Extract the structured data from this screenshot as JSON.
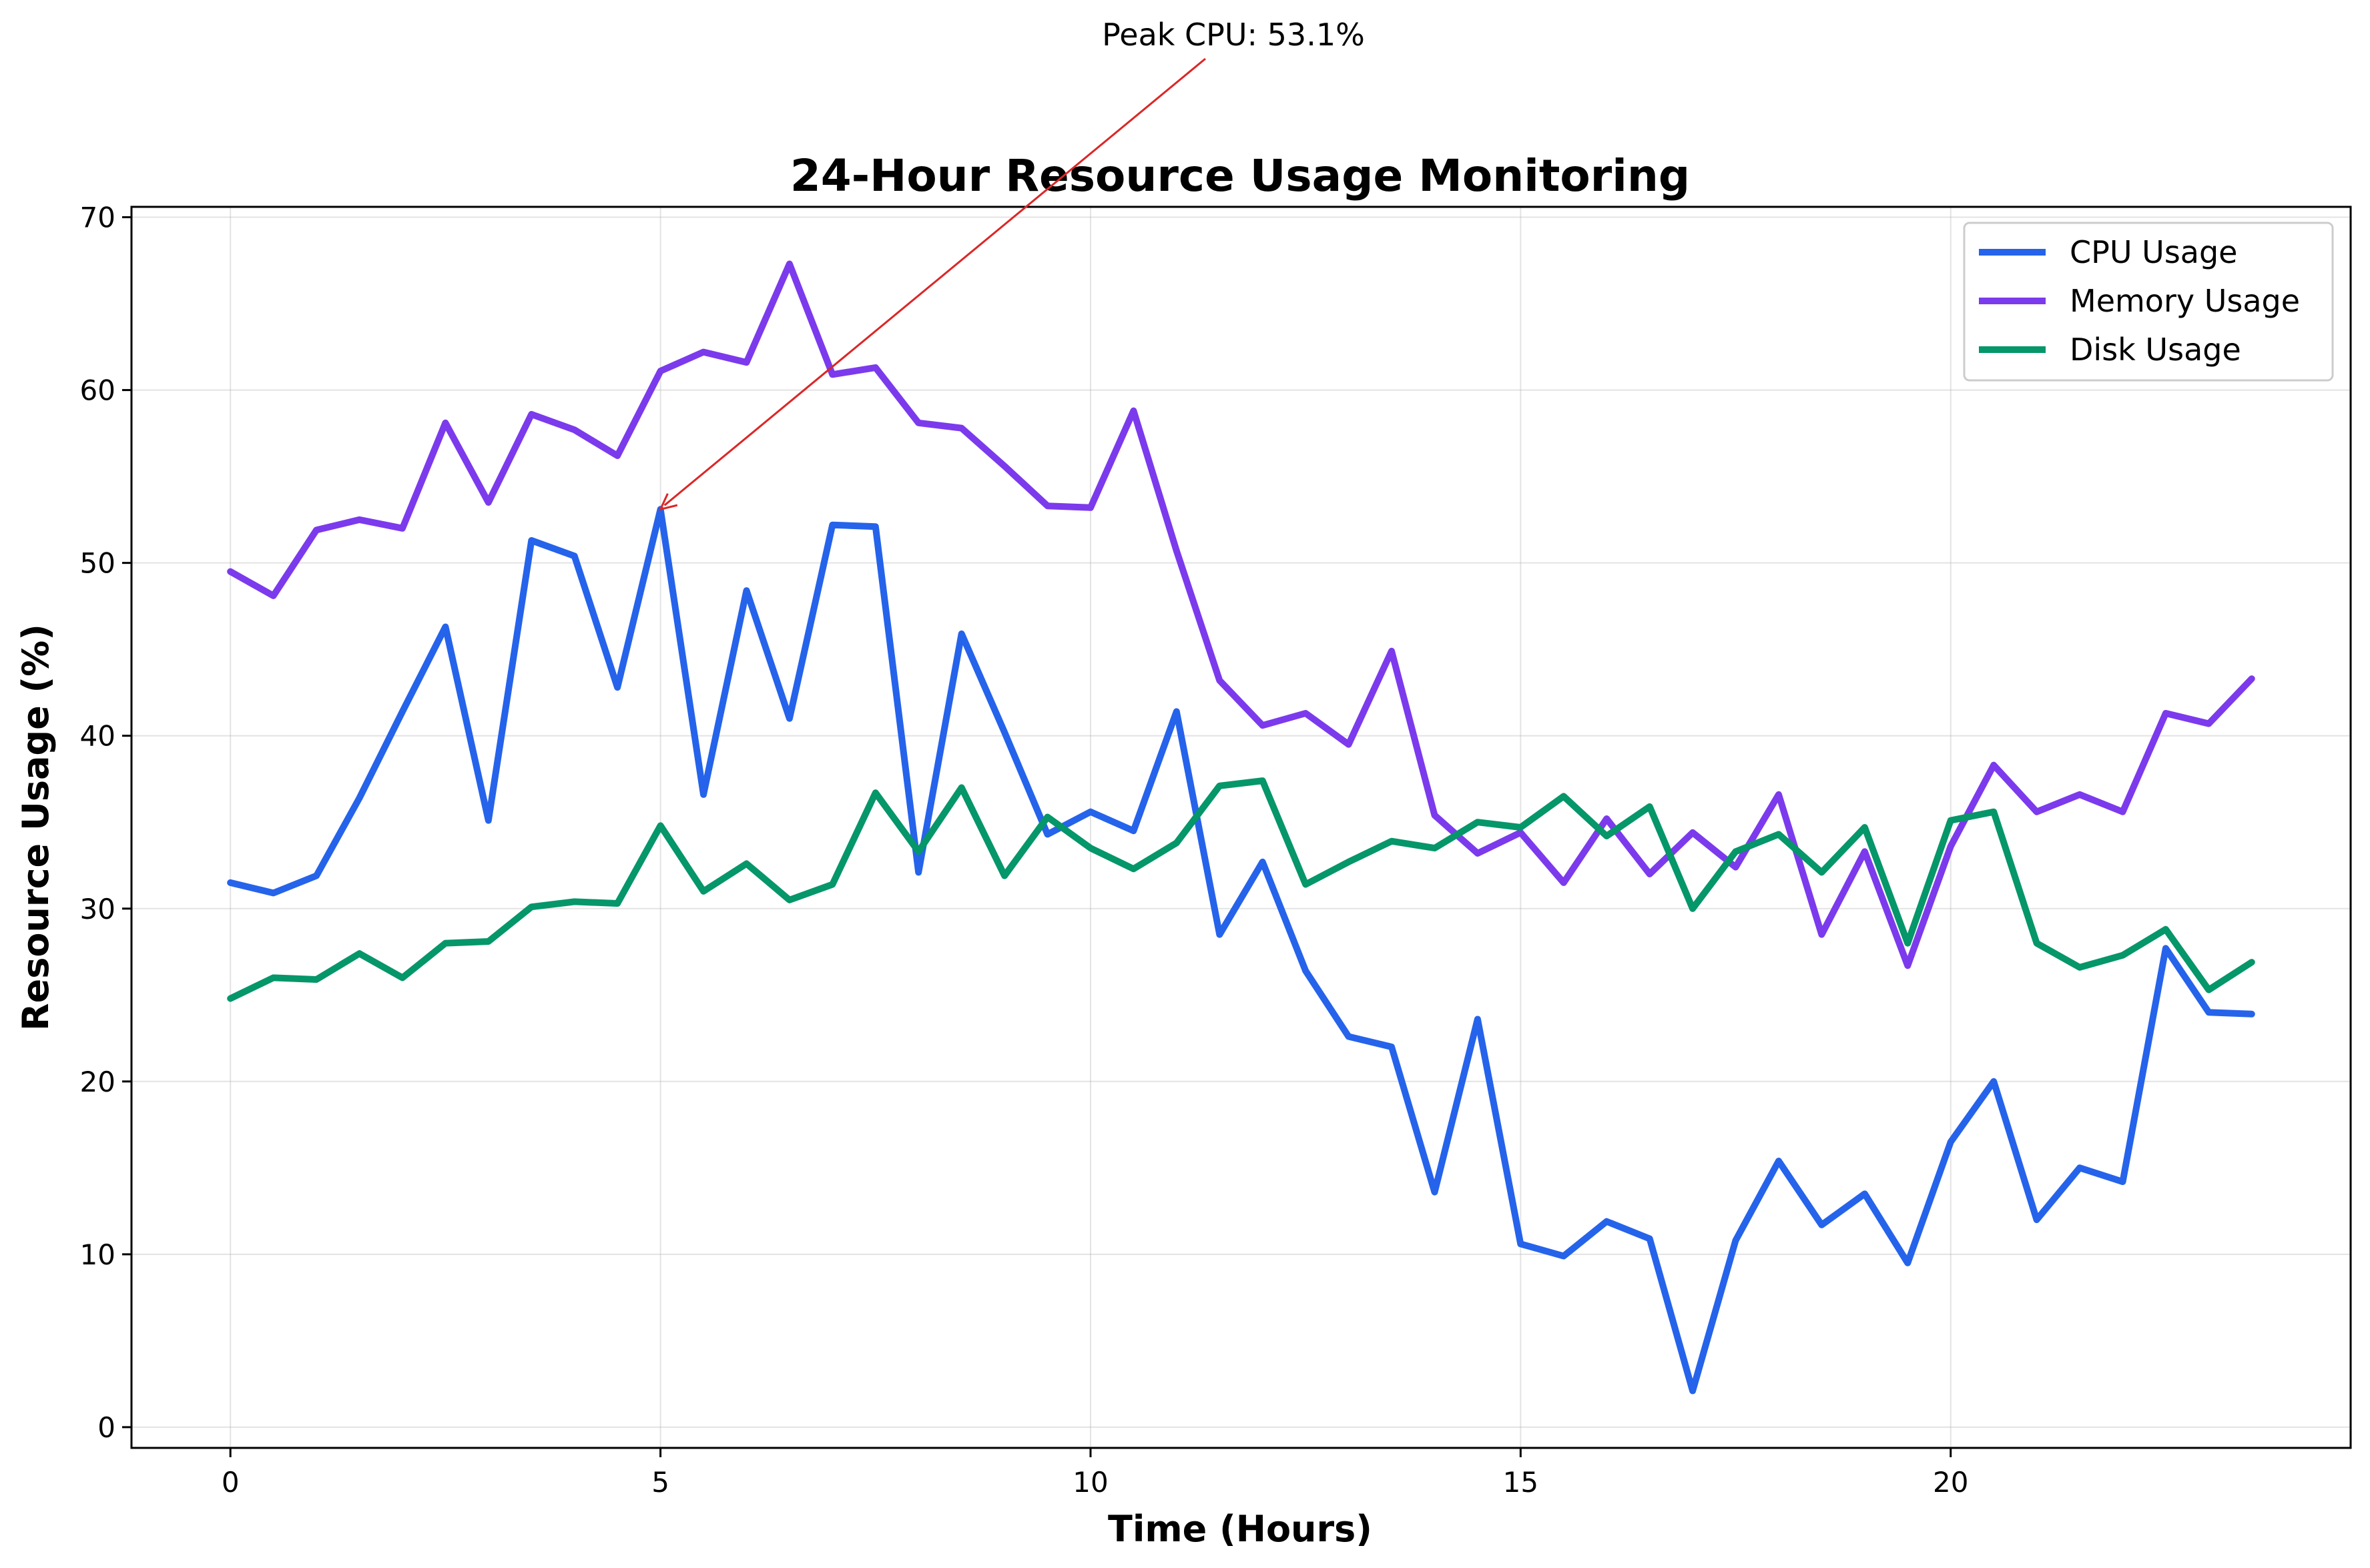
{
  "chart_data": {
    "type": "line",
    "title": "24-Hour Resource Usage Monitoring",
    "xlabel": "Time (Hours)",
    "ylabel": "Resource Usage (%)",
    "xlim": [
      -1.15,
      24.65
    ],
    "ylim": [
      -1.2,
      70.6
    ],
    "xticks": [
      0,
      5,
      10,
      15,
      20
    ],
    "yticks": [
      0,
      10,
      20,
      30,
      40,
      50,
      60,
      70
    ],
    "grid": true,
    "legend_position": "top-right",
    "x": [
      0,
      0.5,
      1,
      1.5,
      2,
      2.5,
      3,
      3.5,
      4,
      4.5,
      5,
      5.5,
      6,
      6.5,
      7,
      7.5,
      8,
      8.5,
      9,
      9.5,
      10,
      10.5,
      11,
      11.5,
      12,
      12.5,
      13,
      13.5,
      14,
      14.5,
      15,
      15.5,
      16,
      16.5,
      17,
      17.5,
      18,
      18.5,
      19,
      19.5,
      20,
      20.5,
      21,
      21.5,
      22,
      22.5,
      23,
      23.5
    ],
    "series": [
      {
        "name": "CPU Usage",
        "color": "#2563eb",
        "values": [
          31.5,
          30.9,
          31.9,
          36.4,
          41.4,
          46.3,
          35.1,
          51.3,
          50.4,
          42.8,
          53.1,
          36.6,
          48.4,
          41.0,
          52.2,
          52.1,
          32.1,
          45.9,
          40.2,
          34.3,
          35.6,
          34.5,
          41.4,
          28.5,
          32.7,
          26.4,
          22.6,
          22.0,
          13.6,
          23.6,
          10.6,
          9.9,
          11.9,
          10.9,
          2.1,
          10.8,
          15.4,
          11.7,
          13.5,
          9.5,
          16.5,
          20.0,
          12.0,
          15.0,
          14.2,
          27.7,
          24.0,
          23.9
        ]
      },
      {
        "name": "Memory Usage",
        "color": "#7c3aed",
        "values": [
          49.5,
          48.1,
          51.9,
          52.5,
          52.0,
          58.1,
          53.5,
          58.6,
          57.7,
          56.2,
          61.1,
          62.2,
          61.6,
          67.3,
          60.9,
          61.3,
          58.1,
          57.8,
          55.6,
          53.3,
          53.2,
          58.8,
          50.7,
          43.2,
          40.6,
          41.3,
          39.5,
          44.9,
          35.4,
          33.2,
          34.4,
          31.5,
          35.2,
          32.0,
          34.4,
          32.4,
          36.6,
          28.5,
          33.3,
          26.7,
          33.6,
          38.3,
          35.6,
          36.6,
          35.6,
          41.3,
          40.7,
          43.3
        ]
      },
      {
        "name": "Disk Usage",
        "color": "#059669",
        "values": [
          24.8,
          26.0,
          25.9,
          27.4,
          26.0,
          28.0,
          28.1,
          30.1,
          30.4,
          30.3,
          34.8,
          31.0,
          32.6,
          30.5,
          31.4,
          36.7,
          33.3,
          37.0,
          31.9,
          35.3,
          33.5,
          32.3,
          33.8,
          37.1,
          37.4,
          31.4,
          32.7,
          33.9,
          33.5,
          35.0,
          34.7,
          36.5,
          34.2,
          35.9,
          30.0,
          33.3,
          34.3,
          32.1,
          34.7,
          28.0,
          35.1,
          35.6,
          28.0,
          26.6,
          27.3,
          28.8,
          25.3,
          26.9
        ]
      }
    ],
    "annotations": [
      {
        "text": "Peak CPU: 53.1%",
        "x": 5,
        "y": 53.1,
        "arrow_color": "#dc2626"
      }
    ]
  }
}
